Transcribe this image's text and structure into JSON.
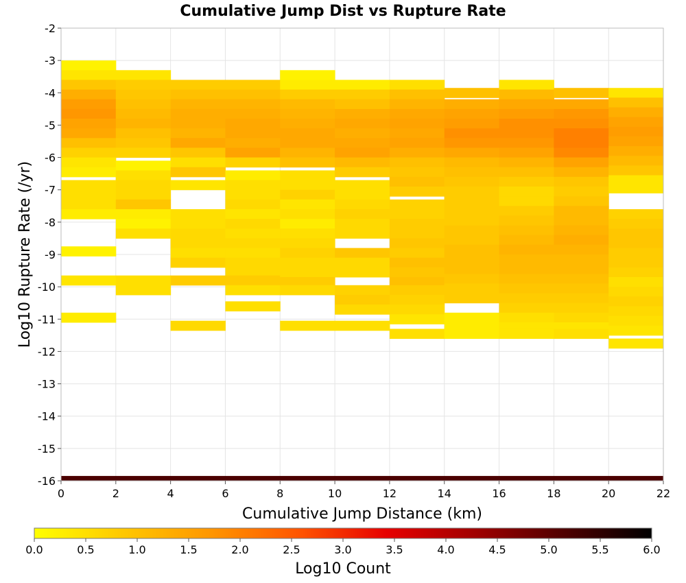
{
  "chart_data": {
    "type": "heatmap",
    "title": "Cumulative Jump Dist vs Rupture Rate",
    "xlabel": "Cumulative Jump Distance (km)",
    "ylabel": "Log10 Rupture Rate (/yr)",
    "xlim": [
      0,
      22
    ],
    "ylim": [
      -16,
      -2
    ],
    "x_ticks": [
      "0",
      "2",
      "4",
      "6",
      "8",
      "10",
      "12",
      "14",
      "16",
      "18",
      "20",
      "22"
    ],
    "y_ticks": [
      "-2",
      "-3",
      "-4",
      "-5",
      "-6",
      "-7",
      "-8",
      "-9",
      "-10",
      "-11",
      "-12",
      "-13",
      "-14",
      "-15",
      "-16"
    ],
    "x_bin_width": 2,
    "y_bin_height": 0.3,
    "grid": true,
    "colorbar": {
      "label": "Log10 Count",
      "range": [
        0,
        6
      ],
      "ticks": [
        "0.0",
        "0.5",
        "1.0",
        "1.5",
        "2.0",
        "2.5",
        "3.0",
        "3.5",
        "4.0",
        "4.5",
        "5.0",
        "5.5",
        "6.0"
      ],
      "colors": [
        "#ffff00",
        "#ffc800",
        "#ff9600",
        "#ff5500",
        "#e60000",
        "#a00000",
        "#500000",
        "#000000"
      ]
    },
    "columns": [
      {
        "x": 0,
        "cells": [
          [
            -3.15,
            0.2
          ],
          [
            -3.45,
            0.4
          ],
          [
            -3.75,
            0.9
          ],
          [
            -4.05,
            1.3
          ],
          [
            -4.35,
            1.6
          ],
          [
            -4.65,
            1.7
          ],
          [
            -4.95,
            1.5
          ],
          [
            -5.25,
            1.4
          ],
          [
            -5.55,
            1.0
          ],
          [
            -5.85,
            0.7
          ],
          [
            -6.15,
            0.4
          ],
          [
            -6.45,
            0.3
          ],
          [
            -6.85,
            0.5
          ],
          [
            -7.15,
            0.5
          ],
          [
            -7.45,
            0.5
          ],
          [
            -7.75,
            0.3
          ],
          [
            -8.9,
            0.2
          ],
          [
            -9.8,
            0.4
          ],
          [
            -10.95,
            0.3
          ]
        ]
      },
      {
        "x": 2,
        "cells": [
          [
            -3.45,
            0.4
          ],
          [
            -3.75,
            0.8
          ],
          [
            -4.05,
            0.9
          ],
          [
            -4.35,
            1.0
          ],
          [
            -4.65,
            1.1
          ],
          [
            -4.95,
            1.2
          ],
          [
            -5.25,
            1.0
          ],
          [
            -5.55,
            0.9
          ],
          [
            -5.85,
            0.7
          ],
          [
            -6.25,
            0.2
          ],
          [
            -6.55,
            0.5
          ],
          [
            -6.85,
            0.6
          ],
          [
            -7.15,
            0.6
          ],
          [
            -7.45,
            0.9
          ],
          [
            -7.75,
            0.3
          ],
          [
            -8.05,
            0.2
          ],
          [
            -8.35,
            0.5
          ],
          [
            -9.8,
            0.5
          ],
          [
            -10.1,
            0.5
          ]
        ]
      },
      {
        "x": 4,
        "cells": [
          [
            -3.75,
            0.8
          ],
          [
            -4.05,
            1.0
          ],
          [
            -4.35,
            1.2
          ],
          [
            -4.65,
            1.3
          ],
          [
            -4.95,
            1.3
          ],
          [
            -5.25,
            1.2
          ],
          [
            -5.55,
            1.4
          ],
          [
            -5.85,
            0.9
          ],
          [
            -6.15,
            0.5
          ],
          [
            -6.45,
            0.9
          ],
          [
            -6.85,
            0.4
          ],
          [
            -7.75,
            0.5
          ],
          [
            -8.05,
            0.5
          ],
          [
            -8.35,
            0.6
          ],
          [
            -8.65,
            0.6
          ],
          [
            -8.95,
            0.5
          ],
          [
            -9.25,
            0.7
          ],
          [
            -9.8,
            0.8
          ],
          [
            -11.2,
            0.6
          ]
        ]
      },
      {
        "x": 6,
        "cells": [
          [
            -3.75,
            0.8
          ],
          [
            -4.05,
            1.0
          ],
          [
            -4.35,
            1.2
          ],
          [
            -4.65,
            1.3
          ],
          [
            -4.95,
            1.4
          ],
          [
            -5.25,
            1.4
          ],
          [
            -5.55,
            1.3
          ],
          [
            -5.85,
            1.5
          ],
          [
            -6.15,
            0.7
          ],
          [
            -6.55,
            0.3
          ],
          [
            -6.85,
            0.5
          ],
          [
            -7.15,
            0.5
          ],
          [
            -7.45,
            0.6
          ],
          [
            -7.75,
            0.4
          ],
          [
            -8.05,
            0.6
          ],
          [
            -8.35,
            0.5
          ],
          [
            -8.65,
            0.6
          ],
          [
            -8.95,
            0.5
          ],
          [
            -9.25,
            0.6
          ],
          [
            -9.55,
            0.6
          ],
          [
            -9.8,
            0.8
          ],
          [
            -10.1,
            0.5
          ],
          [
            -10.6,
            0.5
          ]
        ]
      },
      {
        "x": 8,
        "cells": [
          [
            -3.45,
            0.2
          ],
          [
            -3.75,
            0.3
          ],
          [
            -4.05,
            0.8
          ],
          [
            -4.35,
            1.1
          ],
          [
            -4.65,
            1.2
          ],
          [
            -4.95,
            1.3
          ],
          [
            -5.25,
            1.4
          ],
          [
            -5.55,
            1.4
          ],
          [
            -5.85,
            1.2
          ],
          [
            -6.15,
            1.0
          ],
          [
            -6.55,
            0.5
          ],
          [
            -6.85,
            0.5
          ],
          [
            -7.15,
            0.7
          ],
          [
            -7.45,
            0.4
          ],
          [
            -7.75,
            0.5
          ],
          [
            -8.05,
            0.3
          ],
          [
            -8.35,
            0.5
          ],
          [
            -8.65,
            0.6
          ],
          [
            -8.95,
            0.7
          ],
          [
            -9.25,
            0.6
          ],
          [
            -9.55,
            0.6
          ],
          [
            -9.85,
            0.8
          ],
          [
            -10.1,
            0.6
          ],
          [
            -11.2,
            0.5
          ]
        ]
      },
      {
        "x": 10,
        "cells": [
          [
            -3.75,
            0.3
          ],
          [
            -4.05,
            0.8
          ],
          [
            -4.35,
            1.0
          ],
          [
            -4.65,
            1.3
          ],
          [
            -4.95,
            1.4
          ],
          [
            -5.25,
            1.3
          ],
          [
            -5.55,
            1.4
          ],
          [
            -5.85,
            1.5
          ],
          [
            -6.15,
            1.1
          ],
          [
            -6.45,
            0.8
          ],
          [
            -6.85,
            0.5
          ],
          [
            -7.15,
            0.5
          ],
          [
            -7.45,
            0.6
          ],
          [
            -7.75,
            0.7
          ],
          [
            -8.05,
            0.6
          ],
          [
            -8.35,
            0.6
          ],
          [
            -8.95,
            0.9
          ],
          [
            -9.25,
            0.6
          ],
          [
            -9.55,
            0.6
          ],
          [
            -10.1,
            0.7
          ],
          [
            -10.4,
            0.8
          ],
          [
            -10.7,
            0.6
          ],
          [
            -11.2,
            0.5
          ]
        ]
      },
      {
        "x": 12,
        "cells": [
          [
            -3.75,
            0.5
          ],
          [
            -4.05,
            1.0
          ],
          [
            -4.35,
            1.2
          ],
          [
            -4.65,
            1.4
          ],
          [
            -4.95,
            1.5
          ],
          [
            -5.25,
            1.4
          ],
          [
            -5.55,
            1.5
          ],
          [
            -5.85,
            1.3
          ],
          [
            -6.15,
            1.0
          ],
          [
            -6.45,
            0.9
          ],
          [
            -6.75,
            1.0
          ],
          [
            -7.05,
            0.8
          ],
          [
            -7.45,
            0.7
          ],
          [
            -7.75,
            0.7
          ],
          [
            -8.05,
            0.8
          ],
          [
            -8.35,
            0.8
          ],
          [
            -8.65,
            0.9
          ],
          [
            -8.95,
            0.8
          ],
          [
            -9.25,
            1.0
          ],
          [
            -9.55,
            0.9
          ],
          [
            -9.85,
            1.0
          ],
          [
            -10.1,
            0.8
          ],
          [
            -10.4,
            0.7
          ],
          [
            -10.7,
            0.6
          ],
          [
            -11.0,
            0.4
          ],
          [
            -11.45,
            0.5
          ]
        ]
      },
      {
        "x": 14,
        "cells": [
          [
            -4.0,
            1.0
          ],
          [
            -4.35,
            1.3
          ],
          [
            -4.65,
            1.5
          ],
          [
            -4.95,
            1.6
          ],
          [
            -5.25,
            1.8
          ],
          [
            -5.55,
            1.7
          ],
          [
            -5.85,
            1.4
          ],
          [
            -6.15,
            1.1
          ],
          [
            -6.45,
            1.0
          ],
          [
            -6.75,
            0.9
          ],
          [
            -7.05,
            0.8
          ],
          [
            -7.35,
            0.8
          ],
          [
            -7.65,
            0.8
          ],
          [
            -7.95,
            0.8
          ],
          [
            -8.25,
            0.9
          ],
          [
            -8.55,
            0.9
          ],
          [
            -8.85,
            1.0
          ],
          [
            -9.15,
            1.0
          ],
          [
            -9.45,
            1.0
          ],
          [
            -9.75,
            0.9
          ],
          [
            -10.05,
            0.8
          ],
          [
            -10.35,
            0.8
          ],
          [
            -10.95,
            0.3
          ],
          [
            -11.25,
            0.3
          ],
          [
            -11.45,
            0.3
          ]
        ]
      },
      {
        "x": 16,
        "cells": [
          [
            -3.75,
            0.4
          ],
          [
            -4.05,
            1.1
          ],
          [
            -4.35,
            1.4
          ],
          [
            -4.65,
            1.6
          ],
          [
            -4.95,
            1.8
          ],
          [
            -5.25,
            1.8
          ],
          [
            -5.55,
            1.7
          ],
          [
            -5.85,
            1.5
          ],
          [
            -6.15,
            1.2
          ],
          [
            -6.45,
            1.0
          ],
          [
            -6.75,
            0.8
          ],
          [
            -7.05,
            0.6
          ],
          [
            -7.35,
            0.6
          ],
          [
            -7.65,
            0.8
          ],
          [
            -7.95,
            0.9
          ],
          [
            -8.25,
            1.0
          ],
          [
            -8.55,
            1.1
          ],
          [
            -8.85,
            1.2
          ],
          [
            -9.15,
            1.1
          ],
          [
            -9.45,
            1.1
          ],
          [
            -9.75,
            1.0
          ],
          [
            -10.05,
            0.9
          ],
          [
            -10.35,
            0.8
          ],
          [
            -10.65,
            0.7
          ],
          [
            -10.95,
            0.5
          ],
          [
            -11.25,
            0.4
          ],
          [
            -11.45,
            0.4
          ]
        ]
      },
      {
        "x": 18,
        "cells": [
          [
            -4.0,
            1.0
          ],
          [
            -4.35,
            1.4
          ],
          [
            -4.65,
            1.7
          ],
          [
            -4.95,
            1.8
          ],
          [
            -5.25,
            2.0
          ],
          [
            -5.55,
            2.0
          ],
          [
            -5.85,
            1.9
          ],
          [
            -6.15,
            1.5
          ],
          [
            -6.45,
            1.2
          ],
          [
            -6.75,
            0.9
          ],
          [
            -7.05,
            0.8
          ],
          [
            -7.35,
            0.9
          ],
          [
            -7.65,
            1.1
          ],
          [
            -7.95,
            1.1
          ],
          [
            -8.25,
            1.2
          ],
          [
            -8.55,
            1.3
          ],
          [
            -8.85,
            1.2
          ],
          [
            -9.15,
            1.1
          ],
          [
            -9.45,
            1.1
          ],
          [
            -9.75,
            1.0
          ],
          [
            -10.05,
            0.9
          ],
          [
            -10.35,
            0.8
          ],
          [
            -10.65,
            0.7
          ],
          [
            -10.95,
            0.6
          ],
          [
            -11.25,
            0.4
          ],
          [
            -11.45,
            0.5
          ]
        ]
      },
      {
        "x": 20,
        "cells": [
          [
            -4.0,
            0.4
          ],
          [
            -4.3,
            1.0
          ],
          [
            -4.6,
            1.3
          ],
          [
            -4.9,
            1.5
          ],
          [
            -5.2,
            1.6
          ],
          [
            -5.5,
            1.5
          ],
          [
            -5.8,
            1.3
          ],
          [
            -6.1,
            1.1
          ],
          [
            -6.4,
            0.9
          ],
          [
            -6.7,
            0.4
          ],
          [
            -6.95,
            0.4
          ],
          [
            -7.75,
            0.7
          ],
          [
            -8.05,
            0.8
          ],
          [
            -8.35,
            0.9
          ],
          [
            -8.65,
            0.9
          ],
          [
            -8.95,
            0.8
          ],
          [
            -9.25,
            0.8
          ],
          [
            -9.55,
            0.7
          ],
          [
            -9.85,
            0.5
          ],
          [
            -10.15,
            0.6
          ],
          [
            -10.45,
            0.7
          ],
          [
            -10.75,
            0.6
          ],
          [
            -11.05,
            0.5
          ],
          [
            -11.35,
            0.4
          ],
          [
            -11.75,
            0.4
          ]
        ]
      }
    ],
    "bottom_band": {
      "y": -16,
      "value": 5.2
    }
  }
}
